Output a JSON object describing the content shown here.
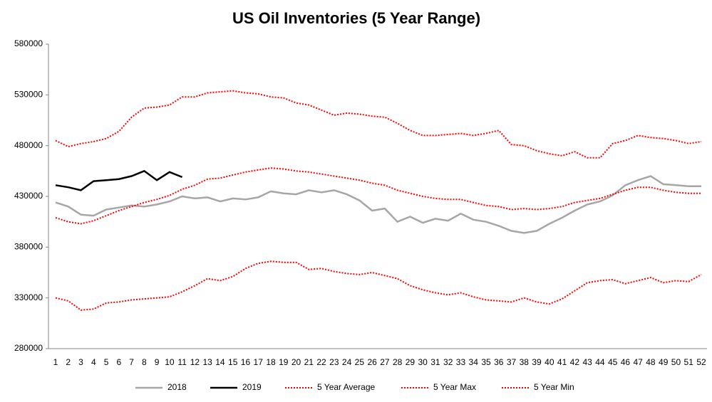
{
  "chart_data": {
    "type": "line",
    "title": "US Oil Inventories (5 Year Range)",
    "categories": [
      "1",
      "2",
      "3",
      "4",
      "5",
      "6",
      "7",
      "8",
      "9",
      "10",
      "11",
      "12",
      "13",
      "14",
      "15",
      "16",
      "17",
      "18",
      "19",
      "20",
      "21",
      "22",
      "23",
      "24",
      "25",
      "26",
      "27",
      "28",
      "29",
      "30",
      "31",
      "32",
      "33",
      "34",
      "35",
      "36",
      "37",
      "38",
      "39",
      "40",
      "41",
      "42",
      "43",
      "44",
      "45",
      "46",
      "47",
      "48",
      "49",
      "50",
      "51",
      "52"
    ],
    "ylim": [
      280000,
      580000
    ],
    "yticks": [
      280000,
      330000,
      380000,
      430000,
      480000,
      530000,
      580000
    ],
    "legend": "bottom",
    "series": [
      {
        "name": "2018",
        "color": "#a6a6a6",
        "style": "solid",
        "values": [
          424000,
          420000,
          412000,
          411000,
          417000,
          419000,
          421000,
          420000,
          422000,
          425000,
          430000,
          428000,
          429000,
          425000,
          428000,
          427000,
          429000,
          435000,
          433000,
          432000,
          436000,
          434000,
          436000,
          432000,
          426000,
          416000,
          418000,
          405000,
          410000,
          404000,
          408000,
          406000,
          413000,
          407000,
          405000,
          401000,
          396000,
          394000,
          396000,
          403000,
          409000,
          416000,
          422000,
          425000,
          431000,
          441000,
          446000,
          450000,
          442000,
          441000,
          440000,
          440000
        ]
      },
      {
        "name": "2019",
        "color": "#000000",
        "style": "solid",
        "values": [
          441000,
          439000,
          436000,
          445000,
          446000,
          447000,
          450000,
          455000,
          446000,
          454000,
          449000,
          null,
          null,
          null,
          null,
          null,
          null,
          null,
          null,
          null,
          null,
          null,
          null,
          null,
          null,
          null,
          null,
          null,
          null,
          null,
          null,
          null,
          null,
          null,
          null,
          null,
          null,
          null,
          null,
          null,
          null,
          null,
          null,
          null,
          null,
          null,
          null,
          null,
          null,
          null,
          null,
          null
        ]
      },
      {
        "name": "5 Year Average",
        "color": "#ff0000",
        "style": "dotted",
        "values": [
          409000,
          405000,
          403000,
          406000,
          411000,
          416000,
          420000,
          424000,
          427000,
          431000,
          437000,
          441000,
          447000,
          448000,
          451000,
          454000,
          456000,
          458000,
          457000,
          455000,
          454000,
          452000,
          450000,
          448000,
          446000,
          443000,
          441000,
          436000,
          433000,
          430000,
          428000,
          427000,
          427000,
          424000,
          421000,
          420000,
          417000,
          418000,
          417000,
          418000,
          420000,
          424000,
          426000,
          428000,
          432000,
          436000,
          439000,
          439000,
          436000,
          434000,
          433000,
          433000
        ]
      },
      {
        "name": "5 Year Max",
        "color": "#ff0000",
        "style": "dotted",
        "values": [
          485000,
          479000,
          482000,
          484000,
          487000,
          494000,
          508000,
          517000,
          518000,
          520000,
          528000,
          528000,
          532000,
          533000,
          534000,
          532000,
          531000,
          528000,
          527000,
          522000,
          520000,
          515000,
          510000,
          512000,
          511000,
          509000,
          508000,
          502000,
          495000,
          490000,
          490000,
          491000,
          492000,
          490000,
          492000,
          495000,
          481000,
          480000,
          475000,
          472000,
          470000,
          474000,
          468000,
          468000,
          482000,
          485000,
          490000,
          488000,
          487000,
          485000,
          482000,
          484000
        ]
      },
      {
        "name": "5 Year Min",
        "color": "#ff0000",
        "style": "dotted",
        "values": [
          330000,
          327000,
          318000,
          319000,
          325000,
          326000,
          328000,
          329000,
          330000,
          331000,
          336000,
          342000,
          349000,
          347000,
          351000,
          359000,
          364000,
          366000,
          365000,
          365000,
          358000,
          359000,
          356000,
          354000,
          353000,
          355000,
          352000,
          349000,
          342000,
          338000,
          335000,
          333000,
          335000,
          331000,
          328000,
          327000,
          326000,
          330000,
          326000,
          324000,
          329000,
          337000,
          345000,
          347000,
          348000,
          344000,
          347000,
          350000,
          345000,
          347000,
          346000,
          353000
        ]
      }
    ]
  }
}
